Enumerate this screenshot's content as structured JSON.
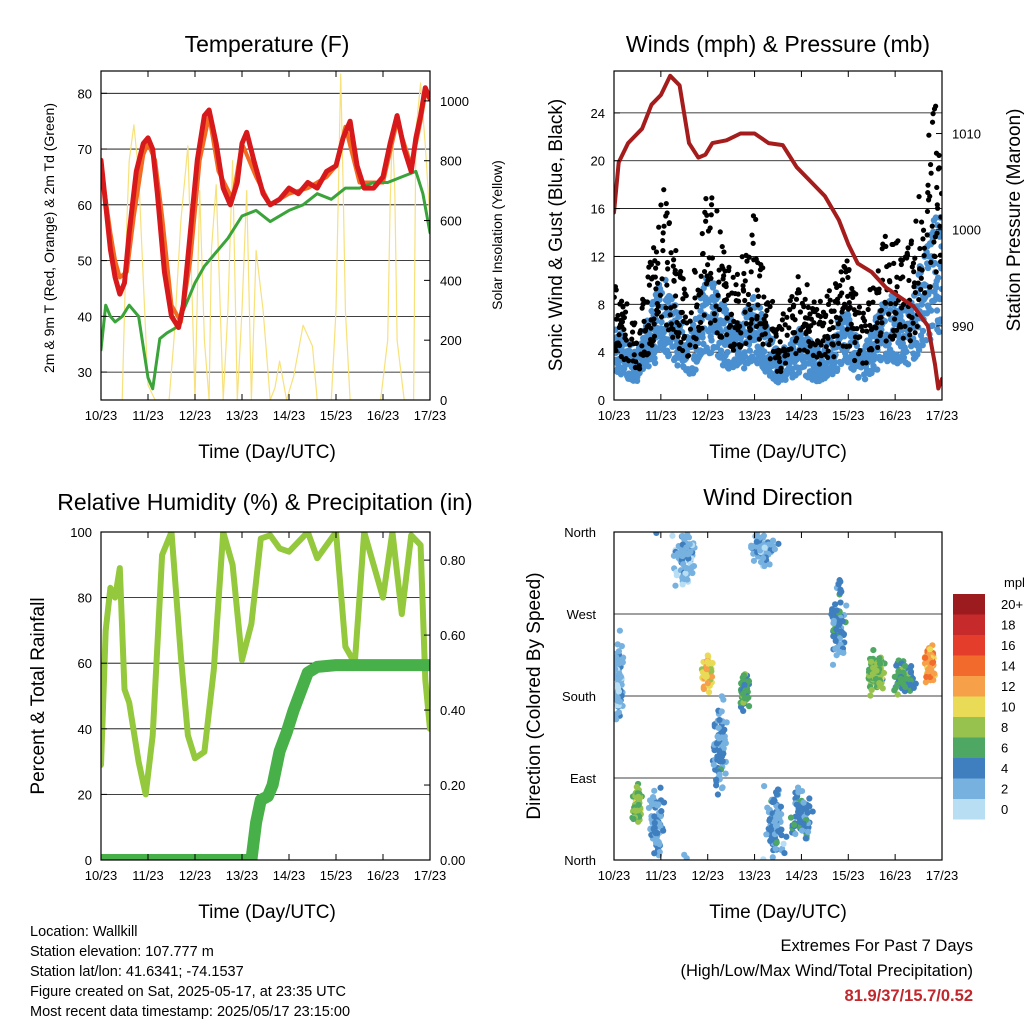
{
  "info": {
    "location": "Location: Wallkill",
    "elevation": "Station elevation: 107.777 m",
    "latlon": "Station lat/lon: 41.6341; -74.1537",
    "created": "Figure created on Sat, 2025-05-17, at 23:35 UTC",
    "recent": "Most recent data timestamp: 2025/05/17 23:15:00"
  },
  "extremes": {
    "title": "Extremes For Past 7 Days",
    "subtitle": "(High/Low/Max Wind/Total Precipitation)",
    "values": "81.9/37/15.7/0.52"
  },
  "colors": {
    "temp9m": "#d7191c",
    "temp2m": "#f26b21",
    "dewpoint": "#3aa33a",
    "solar": "#f7e17a",
    "wind": "#4a90d0",
    "gust": "#000000",
    "pressure": "#a51c1c",
    "rh": "#94c83d",
    "precip": "#48b048"
  },
  "chart_data": [
    {
      "type": "line",
      "title": "Temperature (F)",
      "xlabel": "Time (Day/UTC)",
      "ylabel": "2m & 9m T (Red, Orange) & 2m Td (Green)",
      "ylabel_right": "Solar Insolation (Yellow)",
      "x_ticks": [
        "10/23",
        "11/23",
        "12/23",
        "13/23",
        "14/23",
        "15/23",
        "16/23",
        "17/23"
      ],
      "xlim": [
        0,
        7
      ],
      "ylim": [
        25,
        84
      ],
      "y_ticks": [
        30,
        40,
        50,
        60,
        70,
        80
      ],
      "ylim_right": [
        0,
        1100
      ],
      "y_ticks_right": [
        0,
        200,
        400,
        600,
        800,
        1000
      ],
      "grid": true,
      "series": [
        {
          "axis": "left",
          "color": "#d7191c",
          "width": 5,
          "x": [
            0,
            0.1,
            0.2,
            0.3,
            0.4,
            0.5,
            0.6,
            0.75,
            0.9,
            1.0,
            1.1,
            1.2,
            1.35,
            1.5,
            1.65,
            1.75,
            1.9,
            2.05,
            2.2,
            2.3,
            2.45,
            2.6,
            2.75,
            2.9,
            3.0,
            3.1,
            3.25,
            3.45,
            3.6,
            3.8,
            4.0,
            4.2,
            4.4,
            4.6,
            4.8,
            5.0,
            5.15,
            5.3,
            5.45,
            5.6,
            5.8,
            6.0,
            6.15,
            6.3,
            6.45,
            6.6,
            6.7,
            6.8,
            6.9,
            7.0
          ],
          "y": [
            68,
            60,
            52,
            47,
            44,
            46,
            55,
            66,
            71,
            72,
            70,
            62,
            48,
            40,
            38,
            42,
            55,
            68,
            76,
            77,
            71,
            63,
            60,
            64,
            71,
            73,
            68,
            62,
            60,
            61,
            63,
            62,
            64,
            63,
            66,
            67,
            72,
            75,
            67,
            63,
            63,
            65,
            71,
            76,
            70,
            66,
            72,
            76,
            81,
            79
          ]
        },
        {
          "axis": "left",
          "color": "#f26b21",
          "width": 4,
          "x": [
            0,
            0.1,
            0.2,
            0.3,
            0.4,
            0.55,
            0.7,
            0.9,
            1.0,
            1.15,
            1.3,
            1.5,
            1.7,
            1.9,
            2.1,
            2.3,
            2.5,
            2.8,
            3.0,
            3.3,
            3.6,
            4.0,
            4.4,
            4.8,
            5.0,
            5.2,
            5.5,
            6.0,
            6.3,
            6.6,
            6.8,
            6.9,
            7.0
          ],
          "y": [
            67,
            61,
            55,
            50,
            47,
            48,
            58,
            69,
            71,
            68,
            58,
            42,
            39,
            50,
            68,
            76,
            66,
            61,
            71,
            65,
            60,
            62,
            63,
            65,
            67,
            74,
            64,
            64,
            75,
            67,
            75,
            80,
            79
          ]
        },
        {
          "axis": "left",
          "color": "#3aa33a",
          "width": 3,
          "x": [
            0,
            0.1,
            0.2,
            0.3,
            0.45,
            0.6,
            0.8,
            1.0,
            1.1,
            1.25,
            1.4,
            1.6,
            1.8,
            2.0,
            2.2,
            2.4,
            2.7,
            3.0,
            3.3,
            3.6,
            4.0,
            4.3,
            4.6,
            4.9,
            5.2,
            5.5,
            5.8,
            6.1,
            6.4,
            6.7,
            6.85,
            7.0
          ],
          "y": [
            34,
            42,
            40,
            39,
            40,
            42,
            40,
            29,
            27,
            36,
            37,
            38,
            42,
            46,
            49,
            51,
            54,
            58,
            59,
            57,
            59,
            60,
            62,
            61,
            63,
            63,
            64,
            64,
            65,
            66,
            62,
            55
          ]
        },
        {
          "axis": "right",
          "color": "#f7e17a",
          "width": 1.2,
          "x": [
            0,
            0.15,
            0.3,
            0.45,
            0.55,
            0.6,
            0.7,
            0.8,
            0.9,
            1.0,
            1.15,
            1.3,
            1.45,
            1.55,
            1.7,
            1.85,
            2.0,
            2.1,
            2.2,
            2.3,
            2.35,
            2.45,
            2.6,
            2.7,
            2.8,
            2.9,
            3.0,
            3.1,
            3.2,
            3.3,
            3.45,
            3.6,
            3.7,
            3.8,
            3.95,
            4.1,
            4.3,
            4.5,
            4.6,
            4.7,
            4.8,
            4.9,
            5.0,
            5.05,
            5.1,
            5.15,
            5.2,
            5.3,
            5.45,
            5.6,
            5.7,
            5.8,
            5.95,
            6.1,
            6.15,
            6.2,
            6.25,
            6.3,
            6.45,
            6.6,
            6.65,
            6.7,
            6.8,
            6.9,
            7.0
          ],
          "y": [
            0,
            0,
            0,
            0,
            600,
            800,
            920,
            760,
            400,
            50,
            0,
            0,
            0,
            200,
            600,
            850,
            0,
            700,
            200,
            0,
            500,
            720,
            0,
            300,
            800,
            0,
            300,
            700,
            0,
            500,
            300,
            0,
            40,
            130,
            0,
            80,
            250,
            180,
            0,
            0,
            0,
            0,
            300,
            700,
            1090,
            720,
            300,
            0,
            0,
            0,
            0,
            0,
            0,
            200,
            650,
            900,
            700,
            200,
            0,
            0,
            0,
            900,
            1060,
            850,
            600
          ]
        }
      ]
    },
    {
      "type": "scatter",
      "title": "Winds (mph) & Pressure (mb)",
      "xlabel": "Time (Day/UTC)",
      "ylabel": "Sonic Wind & Gust (Blue, Black)",
      "ylabel_right": "Station Pressure (Maroon)",
      "x_ticks": [
        "10/23",
        "11/23",
        "12/23",
        "13/23",
        "14/23",
        "15/23",
        "16/23",
        "17/23"
      ],
      "xlim": [
        0,
        7
      ],
      "ylim": [
        0,
        27.5
      ],
      "y_ticks": [
        0,
        4,
        8,
        12,
        16,
        20,
        24
      ],
      "ylim_right": [
        982.3,
        1016.5
      ],
      "y_ticks_right": [
        990,
        1000,
        1010
      ],
      "grid": true,
      "peaks": [
        {
          "t": 0.08,
          "wind": 6,
          "gust": 10
        },
        {
          "t": 0.5,
          "wind": 4,
          "gust": 6
        },
        {
          "t": 1.05,
          "wind": 11,
          "gust": 18
        },
        {
          "t": 1.6,
          "wind": 5,
          "gust": 8
        },
        {
          "t": 2.0,
          "wind": 11,
          "gust": 19
        },
        {
          "t": 2.6,
          "wind": 6,
          "gust": 10
        },
        {
          "t": 3.0,
          "wind": 9,
          "gust": 16
        },
        {
          "t": 3.5,
          "wind": 4,
          "gust": 6
        },
        {
          "t": 3.95,
          "wind": 6,
          "gust": 11
        },
        {
          "t": 4.45,
          "wind": 4,
          "gust": 8
        },
        {
          "t": 4.95,
          "wind": 8,
          "gust": 12
        },
        {
          "t": 5.3,
          "wind": 4,
          "gust": 7
        },
        {
          "t": 5.8,
          "wind": 9,
          "gust": 14
        },
        {
          "t": 6.3,
          "wind": 8,
          "gust": 13
        },
        {
          "t": 6.85,
          "wind": 15.7,
          "gust": 25
        }
      ],
      "pressure": {
        "x": [
          0,
          0.1,
          0.3,
          0.6,
          0.8,
          1.0,
          1.2,
          1.4,
          1.6,
          1.8,
          1.95,
          2.1,
          2.4,
          2.7,
          3.0,
          3.3,
          3.6,
          3.9,
          4.2,
          4.5,
          4.8,
          5.0,
          5.2,
          5.5,
          5.8,
          6.1,
          6.4,
          6.7,
          6.85,
          6.92,
          7.0
        ],
        "y": [
          1001.8,
          1007,
          1009,
          1010.5,
          1013,
          1014,
          1016,
          1015,
          1009,
          1007.5,
          1007.8,
          1009,
          1009.3,
          1010,
          1010,
          1009,
          1008.8,
          1006.5,
          1005,
          1003.5,
          1001,
          998.5,
          996.5,
          995.6,
          994,
          993,
          992,
          990,
          986,
          983.5,
          984.5
        ]
      }
    },
    {
      "type": "line",
      "title": "Relative Humidity (%) & Precipitation (in)",
      "xlabel": "Time (Day/UTC)",
      "ylabel": "Percent & Total Rainfall",
      "x_ticks": [
        "10/23",
        "11/23",
        "12/23",
        "13/23",
        "14/23",
        "15/23",
        "16/23",
        "17/23"
      ],
      "xlim": [
        0,
        7
      ],
      "ylim": [
        0,
        100
      ],
      "y_ticks": [
        0,
        20,
        40,
        60,
        80,
        100
      ],
      "ylim_right": [
        0,
        0.875
      ],
      "y_ticks_right": [
        "0.00",
        "0.20",
        "0.40",
        "0.60",
        "0.80"
      ],
      "grid": true,
      "series": [
        {
          "name": "rh",
          "axis": "left",
          "color": "#94c83d",
          "width": 6,
          "x": [
            0,
            0.1,
            0.2,
            0.3,
            0.4,
            0.5,
            0.6,
            0.8,
            0.95,
            1.1,
            1.3,
            1.5,
            1.7,
            1.85,
            2.0,
            2.2,
            2.4,
            2.6,
            2.8,
            3.0,
            3.2,
            3.4,
            3.6,
            3.8,
            4.0,
            4.2,
            4.4,
            4.6,
            4.8,
            5.0,
            5.2,
            5.4,
            5.6,
            5.8,
            6.0,
            6.2,
            6.4,
            6.6,
            6.8,
            6.9,
            7.0
          ],
          "y": [
            29,
            70,
            83,
            80,
            89,
            52,
            48,
            30,
            20,
            38,
            93,
            100,
            62,
            38,
            31,
            33,
            58,
            100,
            90,
            61,
            72,
            98,
            99,
            95,
            94,
            97,
            100,
            92,
            96,
            100,
            65,
            60,
            100,
            90,
            80,
            100,
            75,
            99,
            96,
            55,
            40
          ]
        },
        {
          "name": "precip",
          "axis": "right",
          "color": "#48b048",
          "width": 12,
          "x": [
            0,
            3.2,
            3.3,
            3.4,
            3.55,
            3.65,
            3.8,
            3.95,
            4.1,
            4.25,
            4.4,
            4.6,
            5.0,
            6.0,
            7.0
          ],
          "y": [
            0,
            0,
            0.1,
            0.16,
            0.17,
            0.2,
            0.29,
            0.34,
            0.4,
            0.45,
            0.5,
            0.515,
            0.52,
            0.52,
            0.52
          ]
        }
      ]
    },
    {
      "type": "scatter",
      "title": "Wind Direction",
      "xlabel": "Time (Day/UTC)",
      "ylabel": "Direction (Colored By Speed)",
      "x_ticks": [
        "10/23",
        "11/23",
        "12/23",
        "13/23",
        "14/23",
        "15/23",
        "16/23",
        "17/23"
      ],
      "xlim": [
        0,
        7
      ],
      "y_ticks": [
        "North",
        "East",
        "South",
        "West",
        "North"
      ],
      "ylim": [
        0,
        360
      ],
      "grid": true,
      "colorbar_label": "mph",
      "colorbar_ticks": [
        "20+",
        "18",
        "16",
        "14",
        "12",
        "10",
        "8",
        "6",
        "4",
        "2",
        "0"
      ],
      "colorbar_colors": [
        "#9c1b1e",
        "#c62a2a",
        "#e53d2c",
        "#f26a2c",
        "#f7a04a",
        "#eadb56",
        "#97c24e",
        "#4ea763",
        "#3f7fbf",
        "#76b1e0",
        "#b8def4"
      ],
      "clusters": [
        {
          "t": 0.1,
          "dir": 200,
          "spd": 2,
          "spread_t": 0.15,
          "spread_d": 60
        },
        {
          "t": 0.5,
          "dir": 60,
          "spd": 7,
          "spread_t": 0.12,
          "spread_d": 25
        },
        {
          "t": 0.9,
          "dir": 40,
          "spd": 3,
          "spread_t": 0.2,
          "spread_d": 50
        },
        {
          "t": 1.5,
          "dir": 330,
          "spd": 2,
          "spread_t": 0.35,
          "spread_d": 40
        },
        {
          "t": 2.0,
          "dir": 205,
          "spd": 10,
          "spread_t": 0.15,
          "spread_d": 25
        },
        {
          "t": 2.25,
          "dir": 120,
          "spd": 3,
          "spread_t": 0.2,
          "spread_d": 80
        },
        {
          "t": 2.8,
          "dir": 185,
          "spd": 6,
          "spread_t": 0.12,
          "spread_d": 30
        },
        {
          "t": 3.2,
          "dir": 340,
          "spd": 2,
          "spread_t": 0.35,
          "spread_d": 25
        },
        {
          "t": 3.45,
          "dir": 40,
          "spd": 3,
          "spread_t": 0.3,
          "spread_d": 45
        },
        {
          "t": 4.0,
          "dir": 50,
          "spd": 4,
          "spread_t": 0.3,
          "spread_d": 40
        },
        {
          "t": 4.8,
          "dir": 260,
          "spd": 4,
          "spread_t": 0.2,
          "spread_d": 60
        },
        {
          "t": 5.6,
          "dir": 205,
          "spd": 7,
          "spread_t": 0.3,
          "spread_d": 30
        },
        {
          "t": 6.2,
          "dir": 200,
          "spd": 5,
          "spread_t": 0.3,
          "spread_d": 25
        },
        {
          "t": 6.75,
          "dir": 215,
          "spd": 12,
          "spread_t": 0.15,
          "spread_d": 25
        }
      ]
    }
  ]
}
